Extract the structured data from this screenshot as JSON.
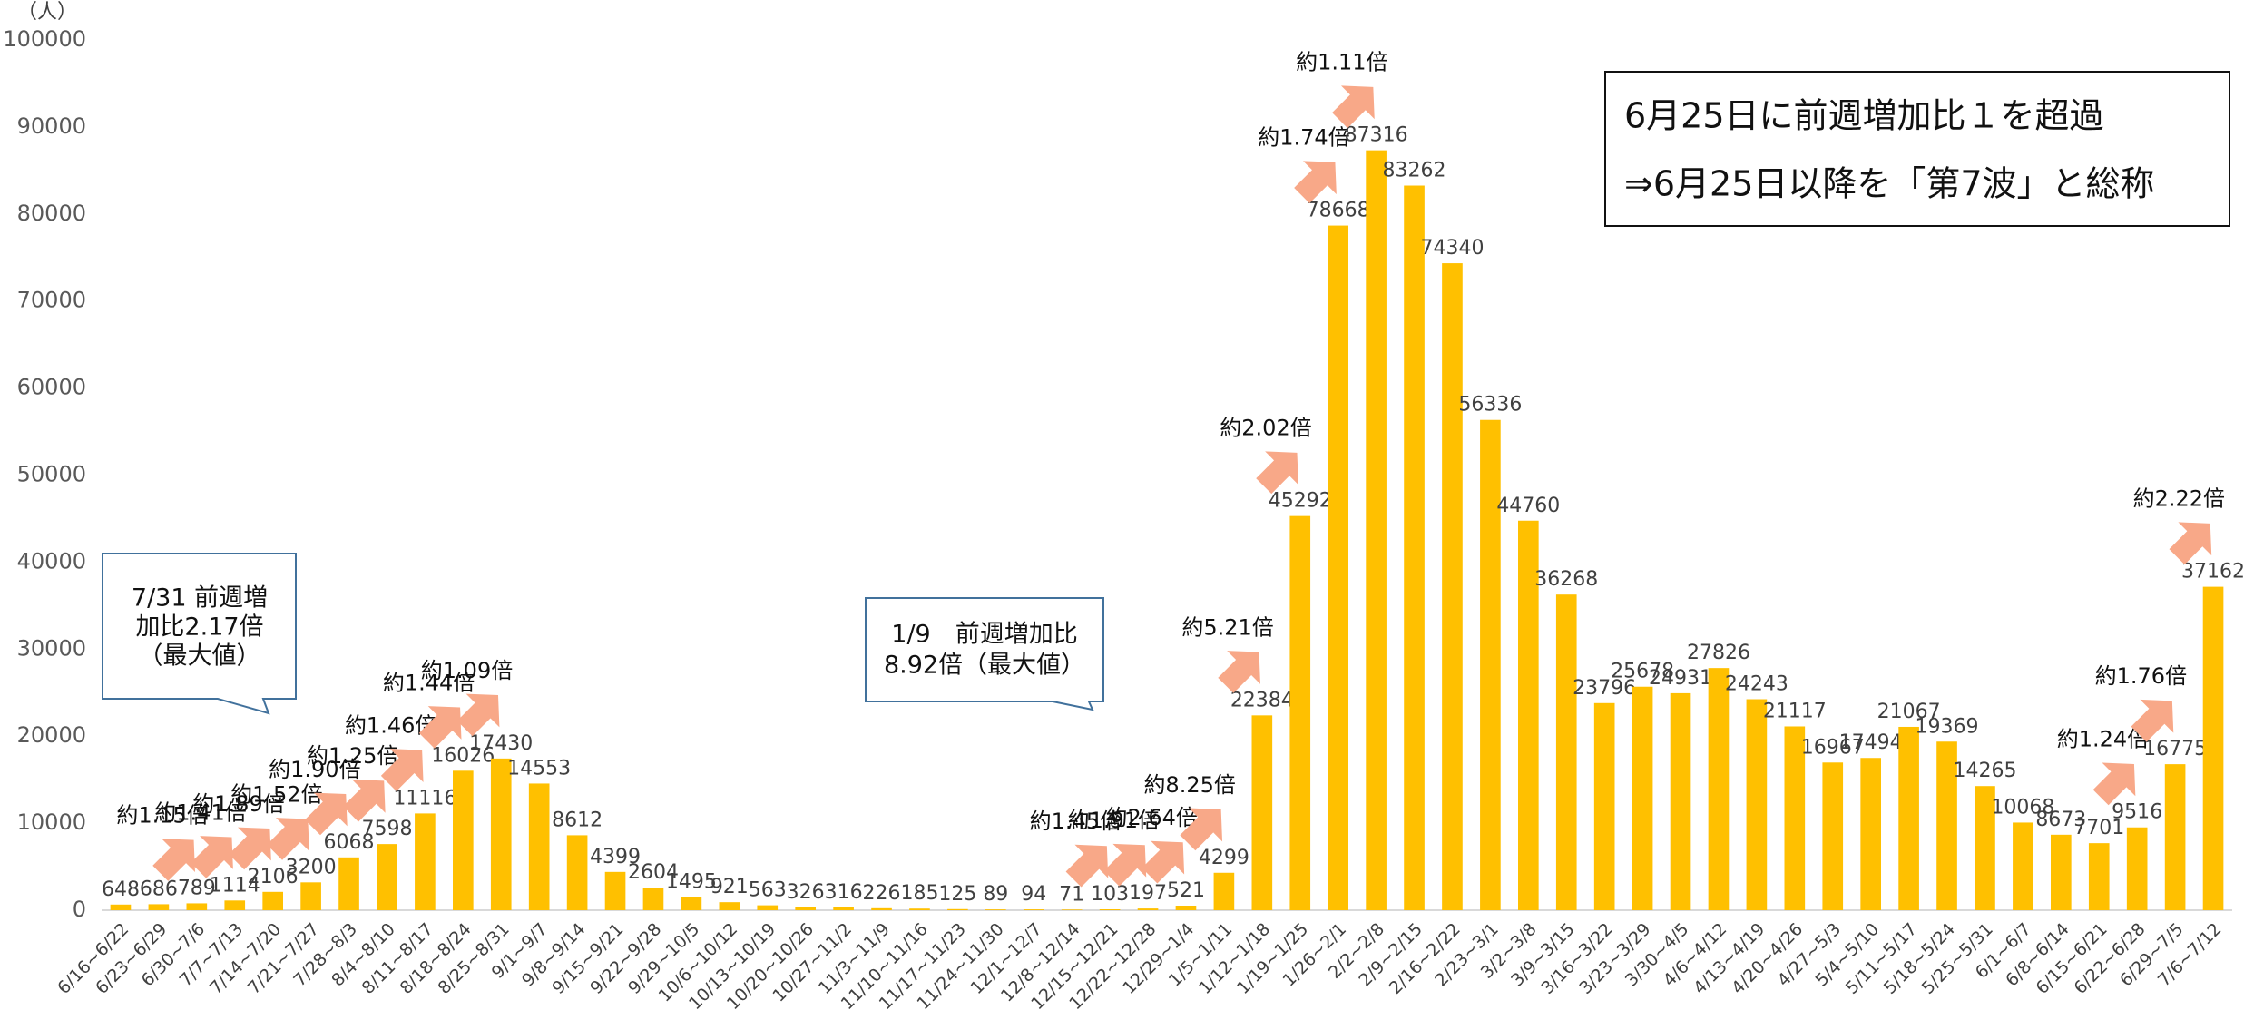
{
  "chart_data": {
    "type": "bar",
    "y_unit": "（人）",
    "color": "#ffc000",
    "categories": [
      "6/16~6/22",
      "6/23~6/29",
      "6/30~7/6",
      "7/7~7/13",
      "7/14~7/20",
      "7/21~7/27",
      "7/28~8/3",
      "8/4~8/10",
      "8/11~8/17",
      "8/18~8/24",
      "8/25~8/31",
      "9/1~9/7",
      "9/8~9/14",
      "9/15~9/21",
      "9/22~9/28",
      "9/29~10/5",
      "10/6~10/12",
      "10/13~10/19",
      "10/20~10/26",
      "10/27~11/2",
      "11/3~11/9",
      "11/10~11/16",
      "11/17~11/23",
      "11/24~11/30",
      "12/1~12/7",
      "12/8~12/14",
      "12/15~12/21",
      "12/22~12/28",
      "12/29~1/4",
      "1/5~1/11",
      "1/12~1/18",
      "1/19~1/25",
      "1/26~2/1",
      "2/2~2/8",
      "2/9~2/15",
      "2/16~2/22",
      "2/23~3/1",
      "3/2~3/8",
      "3/9~3/15",
      "3/16~3/22",
      "3/23~3/29",
      "3/30~4/5",
      "4/6~4/12",
      "4/13~4/19",
      "4/20~4/26",
      "4/27~5/3",
      "5/4~5/10",
      "5/11~5/17",
      "5/18~5/24",
      "5/25~5/31",
      "6/1~6/7",
      "6/8~6/14",
      "6/15~6/21",
      "6/22~6/28",
      "6/29~7/5",
      "7/6~7/12"
    ],
    "values": [
      648,
      686,
      789,
      1114,
      2106,
      3200,
      6068,
      7598,
      11116,
      16026,
      17430,
      14553,
      8612,
      4399,
      2604,
      1495,
      921,
      563,
      326,
      316,
      226,
      185,
      125,
      89,
      94,
      71,
      103,
      197,
      521,
      4299,
      22384,
      45292,
      78668,
      87316,
      83262,
      74340,
      56336,
      44760,
      36268,
      23796,
      25678,
      24931,
      27826,
      24243,
      21117,
      16967,
      17494,
      21067,
      19369,
      14265,
      10068,
      8673,
      7701,
      9516,
      16775,
      37162
    ],
    "ratio_labels": [
      null,
      null,
      "約1.15倍",
      "約1.41倍",
      "約1.89倍",
      "約1.52倍",
      "約1.90倍",
      "約1.25倍",
      "約1.46倍",
      "約1.44倍",
      "約1.09倍",
      null,
      null,
      null,
      null,
      null,
      null,
      null,
      null,
      null,
      null,
      null,
      null,
      null,
      null,
      null,
      "約1.45倍",
      "約1.91倍",
      "約2.64倍",
      "約8.25倍",
      "約5.21倍",
      "約2.02倍",
      "約1.74倍",
      "約1.11倍",
      null,
      null,
      null,
      null,
      null,
      null,
      null,
      null,
      null,
      null,
      null,
      null,
      null,
      null,
      null,
      null,
      null,
      null,
      null,
      "約1.24倍",
      "約1.76倍",
      "約2.22倍"
    ],
    "callouts": [
      [
        "7/31 前週増",
        "加比2.17倍",
        "（最大値）"
      ],
      [
        "1/9　前週増加比",
        "8.92倍（最大値）"
      ]
    ],
    "note": [
      "6月25日に前週増加比１を超過",
      "⇒6月25日以降を「第7波」と総称"
    ],
    "ylim": [
      0,
      100000
    ],
    "yticks": [
      0,
      10000,
      20000,
      30000,
      40000,
      50000,
      60000,
      70000,
      80000,
      90000,
      100000
    ]
  }
}
